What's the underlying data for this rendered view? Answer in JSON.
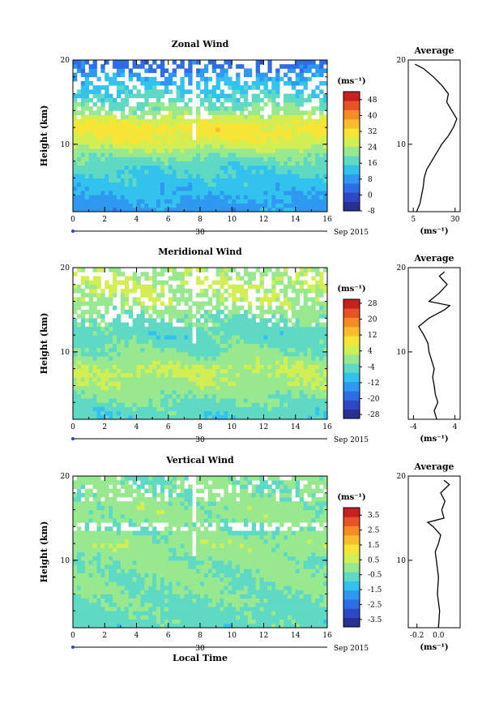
{
  "chart_data": [
    {
      "type": "heatmap",
      "title": "Zonal Wind",
      "ylabel": "Height (km)",
      "xlabel": "",
      "xlim": [
        0,
        16
      ],
      "ylim": [
        2,
        20
      ],
      "x_ticks": [
        "0",
        "2",
        "4",
        "6",
        "8",
        "10",
        "12",
        "14",
        "16"
      ],
      "y_ticks": [
        "10",
        "20"
      ],
      "date_label": "30",
      "date_suffix": "Sep 2015",
      "colorbar": {
        "unit": "(ms⁻¹)",
        "min": -8,
        "max": 52,
        "ticks": [
          "48",
          "40",
          "32",
          "24",
          "16",
          "8",
          "0",
          "-8"
        ]
      },
      "average": {
        "title": "Average",
        "unit": "(ms⁻¹)",
        "xlim": [
          2,
          33
        ],
        "x_ticks": [
          "5",
          "30"
        ],
        "y_ticks": [
          "10",
          "20"
        ],
        "height": [
          2,
          3,
          4,
          5,
          6,
          7,
          8,
          9,
          10,
          11,
          12,
          13,
          14,
          15,
          16,
          17,
          18,
          19,
          19.5
        ],
        "value": [
          7,
          9,
          10,
          11,
          11.5,
          13,
          16,
          19,
          22,
          26,
          29,
          31,
          28,
          25,
          26,
          22,
          17,
          11,
          6
        ]
      },
      "image_map": {
        "min": -8,
        "max": 52,
        "height": [
          2,
          4,
          6,
          8,
          9,
          10,
          11,
          12,
          13,
          14,
          15,
          16,
          17,
          18,
          19,
          20
        ],
        "mean": [
          8,
          11,
          14,
          18,
          22,
          27,
          30,
          31,
          27,
          21,
          18,
          15,
          13,
          10,
          5,
          3
        ],
        "gap_start": 16.3
      }
    },
    {
      "type": "heatmap",
      "title": "Meridional Wind",
      "ylabel": "Height (km)",
      "xlabel": "",
      "xlim": [
        0,
        16
      ],
      "ylim": [
        2,
        20
      ],
      "x_ticks": [
        "0",
        "2",
        "4",
        "6",
        "8",
        "10",
        "12",
        "14",
        "16"
      ],
      "y_ticks": [
        "10",
        "20"
      ],
      "date_label": "30",
      "date_suffix": "Sep 2015",
      "colorbar": {
        "unit": "(ms⁻¹)",
        "min": -30,
        "max": 30,
        "ticks": [
          "28",
          "20",
          "12",
          "4",
          "-4",
          "-12",
          "-20",
          "-28"
        ]
      },
      "average": {
        "title": "Average",
        "unit": "(ms⁻¹)",
        "xlim": [
          -5,
          5
        ],
        "x_ticks": [
          "-4",
          "4"
        ],
        "y_ticks": [
          "10",
          "20"
        ],
        "height": [
          2,
          3,
          4,
          5,
          6,
          7,
          8,
          9,
          10,
          11,
          12,
          13,
          14,
          15,
          15.5,
          16,
          17,
          18,
          19,
          19.5
        ],
        "value": [
          0.5,
          0,
          0.7,
          0.2,
          0,
          -0.3,
          0,
          -0.5,
          -1,
          -1.2,
          -2,
          -3,
          -1,
          2,
          3,
          -1,
          1,
          2.5,
          1,
          2
        ]
      },
      "image_map": {
        "min": -30,
        "max": 30,
        "height": [
          2,
          4,
          6,
          8,
          10,
          12,
          14,
          16,
          18,
          20
        ],
        "mean": [
          -6,
          -3,
          1,
          3,
          -2,
          -5,
          -3,
          2,
          3,
          1
        ],
        "gap_start": 16.3
      }
    },
    {
      "type": "heatmap",
      "title": "Vertical Wind",
      "ylabel": "Height (km)",
      "xlabel": "Local Time",
      "xlim": [
        0,
        16
      ],
      "ylim": [
        2,
        20
      ],
      "x_ticks": [
        "0",
        "2",
        "4",
        "6",
        "8",
        "10",
        "12",
        "14",
        "16"
      ],
      "y_ticks": [
        "10",
        "20"
      ],
      "date_label": "30",
      "date_suffix": "Sep 2015",
      "colorbar": {
        "unit": "(ms⁻¹)",
        "min": -4,
        "max": 4,
        "ticks": [
          "3.5",
          "2.5",
          "1.5",
          "0.5",
          "-0.5",
          "-1.5",
          "-2.5",
          "-3.5"
        ]
      },
      "average": {
        "title": "Average",
        "unit": "(ms⁻¹)",
        "xlim": [
          -0.28,
          0.2
        ],
        "x_ticks": [
          "-0.2",
          "0.0"
        ],
        "y_ticks": [
          "10",
          "20"
        ],
        "height": [
          2,
          4,
          6,
          8,
          10,
          11,
          12,
          13,
          14,
          14.5,
          15,
          16,
          17,
          18,
          19,
          19.5
        ],
        "value": [
          0.0,
          0.01,
          -0.01,
          0.0,
          -0.02,
          -0.03,
          0.0,
          0.02,
          -0.05,
          -0.1,
          0.05,
          0.03,
          0.06,
          0.02,
          0.1,
          0.05
        ]
      },
      "image_map": {
        "min": -4,
        "max": 4,
        "height": [
          2,
          6,
          10,
          12,
          14,
          15,
          17,
          20
        ],
        "mean": [
          -0.6,
          -0.3,
          -0.2,
          0.1,
          -0.4,
          0.0,
          -0.1,
          -0.3
        ],
        "gap_start": 16.3
      }
    }
  ]
}
